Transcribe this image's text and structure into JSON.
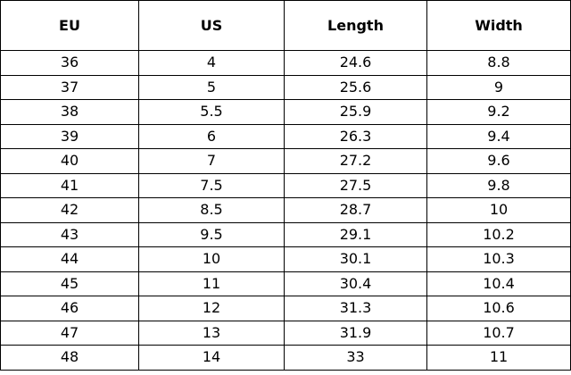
{
  "table": {
    "header": [
      "EU",
      "US",
      "Length",
      "Width"
    ],
    "rows": [
      [
        "36",
        "4",
        "24.6",
        "8.8"
      ],
      [
        "37",
        "5",
        "25.6",
        "9"
      ],
      [
        "38",
        "5.5",
        "25.9",
        "9.2"
      ],
      [
        "39",
        "6",
        "26.3",
        "9.4"
      ],
      [
        "40",
        "7",
        "27.2",
        "9.6"
      ],
      [
        "41",
        "7.5",
        "27.5",
        "9.8"
      ],
      [
        "42",
        "8.5",
        "28.7",
        "10"
      ],
      [
        "43",
        "9.5",
        "29.1",
        "10.2"
      ],
      [
        "44",
        "10",
        "30.1",
        "10.3"
      ],
      [
        "45",
        "11",
        "30.4",
        "10.4"
      ],
      [
        "46",
        "12",
        "31.3",
        "10.6"
      ],
      [
        "47",
        "13",
        "31.9",
        "10.7"
      ],
      [
        "48",
        "14",
        "33",
        "11"
      ]
    ]
  }
}
